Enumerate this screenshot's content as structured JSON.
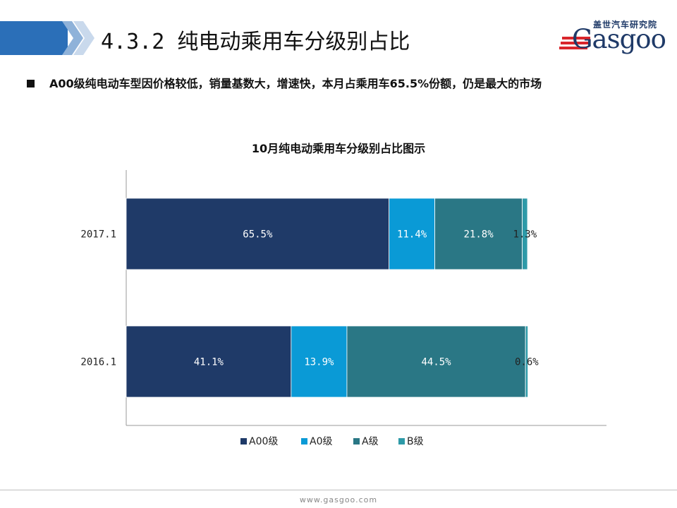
{
  "header": {
    "title": "4.3.2 纯电动乘用车分级别占比",
    "logo_cn": "盖世汽车研究院",
    "logo_en": "Gasgoo"
  },
  "bullet": {
    "text": "A00级纯电动车型因价格较低，销量基数大，增速快，本月占乘用车65.5%份额，仍是最大的市场"
  },
  "colors": {
    "A00": "#1f3a68",
    "A0": "#0a9ad6",
    "A": "#2a7785",
    "B": "#2e9aa8"
  },
  "chart_data": {
    "type": "bar",
    "orientation": "horizontal",
    "stacked": true,
    "title": "10月纯电动乘用车分级别占比图示",
    "categories": [
      "2017.1",
      "2016.1"
    ],
    "series": [
      {
        "name": "A00级",
        "values": [
          65.5,
          41.1
        ],
        "labels": [
          "65.5%",
          "41.1%"
        ]
      },
      {
        "name": "A0级",
        "values": [
          11.4,
          13.9
        ],
        "labels": [
          "11.4%",
          "13.9%"
        ]
      },
      {
        "name": "A级",
        "values": [
          21.8,
          44.5
        ],
        "labels": [
          "21.8%",
          "44.5%"
        ]
      },
      {
        "name": "B级",
        "values": [
          1.3,
          0.6
        ],
        "labels": [
          "1.3%",
          "0.6%"
        ]
      }
    ],
    "xlim": [
      0,
      100
    ],
    "grid": false,
    "legend": "bottom"
  },
  "footer": {
    "url": "www.gasgoo.com"
  }
}
